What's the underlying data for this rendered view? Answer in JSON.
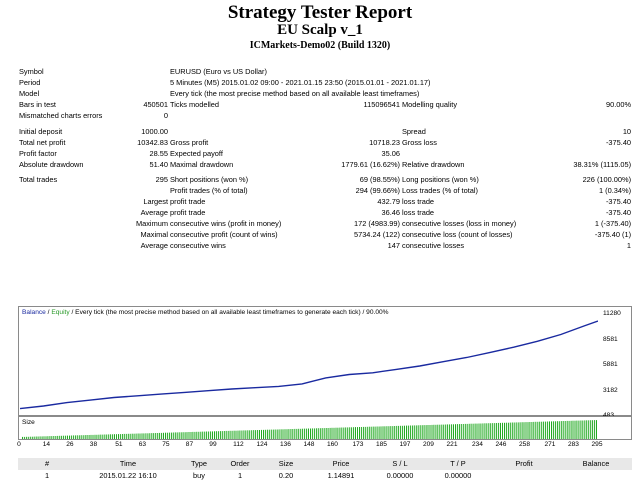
{
  "header": {
    "title": "Strategy Tester Report",
    "expert": "EU Scalp v_1",
    "server": "ICMarkets-Demo02 (Build 1320)"
  },
  "settings": {
    "symbol_label": "Symbol",
    "symbol_value": "EURUSD (Euro vs US Dollar)",
    "period_label": "Period",
    "period_value": "5 Minutes (M5) 2015.01.02 09:00 - 2021.01.15 23:50 (2015.01.01 - 2021.01.17)",
    "model_label": "Model",
    "model_value": "Every tick (the most precise method based on all available least timeframes)",
    "bars_label": "Bars in test",
    "bars_value": "450501",
    "ticks_label": "Ticks modelled",
    "ticks_value": "115096541",
    "quality_label": "Modelling quality",
    "quality_value": "90.00%",
    "mismatch_label": "Mismatched charts errors",
    "mismatch_value": "0"
  },
  "results": {
    "deposit_label": "Initial deposit",
    "deposit_value": "1000.00",
    "spread_label": "Spread",
    "spread_value": "10",
    "net_label": "Total net profit",
    "net_value": "10342.83",
    "gross_profit_label": "Gross profit",
    "gross_profit_value": "10718.23",
    "gross_loss_label": "Gross loss",
    "gross_loss_value": "-375.40",
    "pf_label": "Profit factor",
    "pf_value": "28.55",
    "payoff_label": "Expected payoff",
    "payoff_value": "35.06",
    "absdd_label": "Absolute drawdown",
    "absdd_value": "51.40",
    "maxdd_label": "Maximal drawdown",
    "maxdd_value": "1779.61 (16.62%)",
    "reldd_label": "Relative drawdown",
    "reldd_value": "38.31% (1115.05)",
    "trades_label": "Total trades",
    "trades_value": "295",
    "short_label": "Short positions (won %)",
    "short_value": "69 (98.55%)",
    "long_label": "Long positions (won %)",
    "long_value": "226 (100.00%)",
    "ptrades_label": "Profit trades (% of total)",
    "ptrades_value": "294 (99.66%)",
    "ltrades_label": "Loss trades (% of total)",
    "ltrades_value": "1 (0.34%)",
    "largest_label": "Largest",
    "largest_profit_label": "profit trade",
    "largest_profit_value": "432.79",
    "largest_loss_label": "loss trade",
    "largest_loss_value": "-375.40",
    "average_label": "Average",
    "avg_profit_label": "profit trade",
    "avg_profit_value": "36.46",
    "avg_loss_label": "loss trade",
    "avg_loss_value": "-375.40",
    "maximum_label": "Maximum",
    "max_wins_label": "consecutive wins (profit in money)",
    "max_wins_value": "172 (4983.99)",
    "max_losses_label": "consecutive losses (loss in money)",
    "max_losses_value": "1 (-375.40)",
    "maximal_label": "Maximal",
    "mx_profit_label": "consecutive profit (count of wins)",
    "mx_profit_value": "5734.24 (122)",
    "mx_loss_label": "consecutive loss (count of losses)",
    "mx_loss_value": "-375.40 (1)",
    "average2_label": "Average",
    "avg_wins_label": "consecutive wins",
    "avg_wins_value": "147",
    "avg_losses_label": "consecutive losses",
    "avg_losses_value": "1"
  },
  "chart": {
    "legend_balance": "Balance",
    "legend_sep": " / ",
    "legend_equity": "Equity",
    "legend_rest": " / Every tick (the most precise method based on all available least timeframes to generate each tick) / 90.00%",
    "size_label": "Size",
    "balance_color": "#1a2aa0",
    "size_color": "#22aa22"
  },
  "chart_data": {
    "type": "line",
    "title": "",
    "series": [
      {
        "name": "Balance",
        "x": [
          0,
          12,
          24,
          36,
          48,
          60,
          72,
          84,
          96,
          108,
          120,
          132,
          144,
          156,
          168,
          180,
          192,
          204,
          216,
          228,
          240,
          252,
          264,
          276,
          288,
          295
        ],
        "values": [
          1000,
          1300,
          1700,
          2000,
          2300,
          2500,
          2700,
          2900,
          3100,
          3300,
          3450,
          3600,
          3900,
          4600,
          5000,
          5200,
          5600,
          6000,
          6500,
          7000,
          7600,
          8200,
          8900,
          9700,
          10700,
          11280
        ]
      }
    ],
    "y_ticks": [
      "11280",
      "8581",
      "5881",
      "3182",
      "483"
    ],
    "ylim": [
      483,
      11280
    ],
    "x_ticks": [
      "0",
      "14",
      "26",
      "38",
      "51",
      "63",
      "75",
      "87",
      "99",
      "112",
      "124",
      "136",
      "148",
      "160",
      "173",
      "185",
      "197",
      "209",
      "221",
      "234",
      "246",
      "258",
      "271",
      "283",
      "295"
    ],
    "xlim": [
      0,
      295
    ]
  },
  "deals": {
    "headers": [
      "#",
      "Time",
      "Type",
      "Order",
      "Size",
      "Price",
      "S / L",
      "T / P",
      "Profit",
      "Balance"
    ],
    "rows": [
      [
        "1",
        "2015.01.22 16:10",
        "buy",
        "1",
        "0.20",
        "1.14891",
        "0.00000",
        "0.00000",
        "",
        ""
      ]
    ]
  }
}
